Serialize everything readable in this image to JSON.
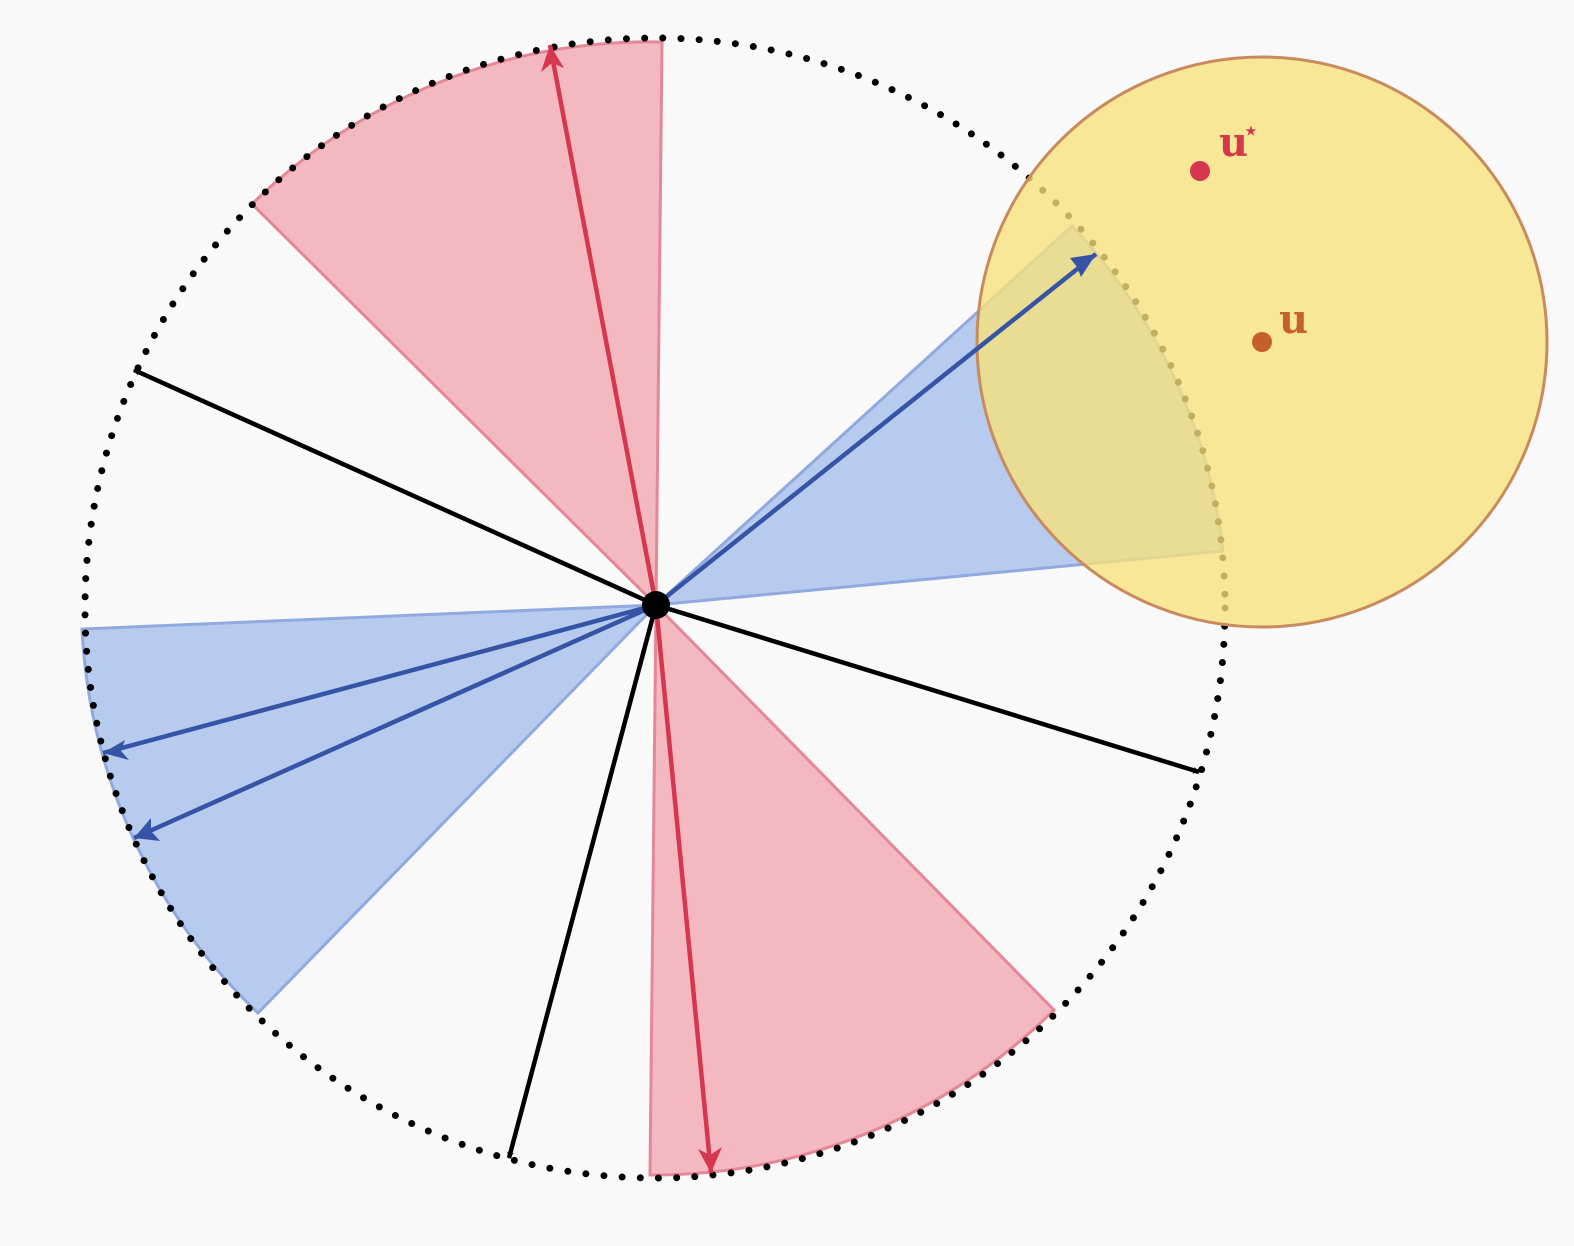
{
  "colors": {
    "background": "#f9f9f9",
    "red_sector_fill": "#f4b8c0",
    "red_sector_stroke": "#e48898",
    "red_arrow": "#d6374f",
    "blue_sector_fill": "#b7cbef",
    "blue_sector_stroke": "#90aadf",
    "blue_arrow": "#3554a5",
    "black": "#000000",
    "yellow_fill": "#f7e17a",
    "yellow_stroke": "#c98a5e",
    "u_point": "#c6602a",
    "u_star_point": "#d6374f"
  },
  "labels": {
    "u": "u",
    "u_star": "u",
    "u_star_sup": "⋆"
  },
  "icons": {
    "u_star_superscript": "star"
  }
}
